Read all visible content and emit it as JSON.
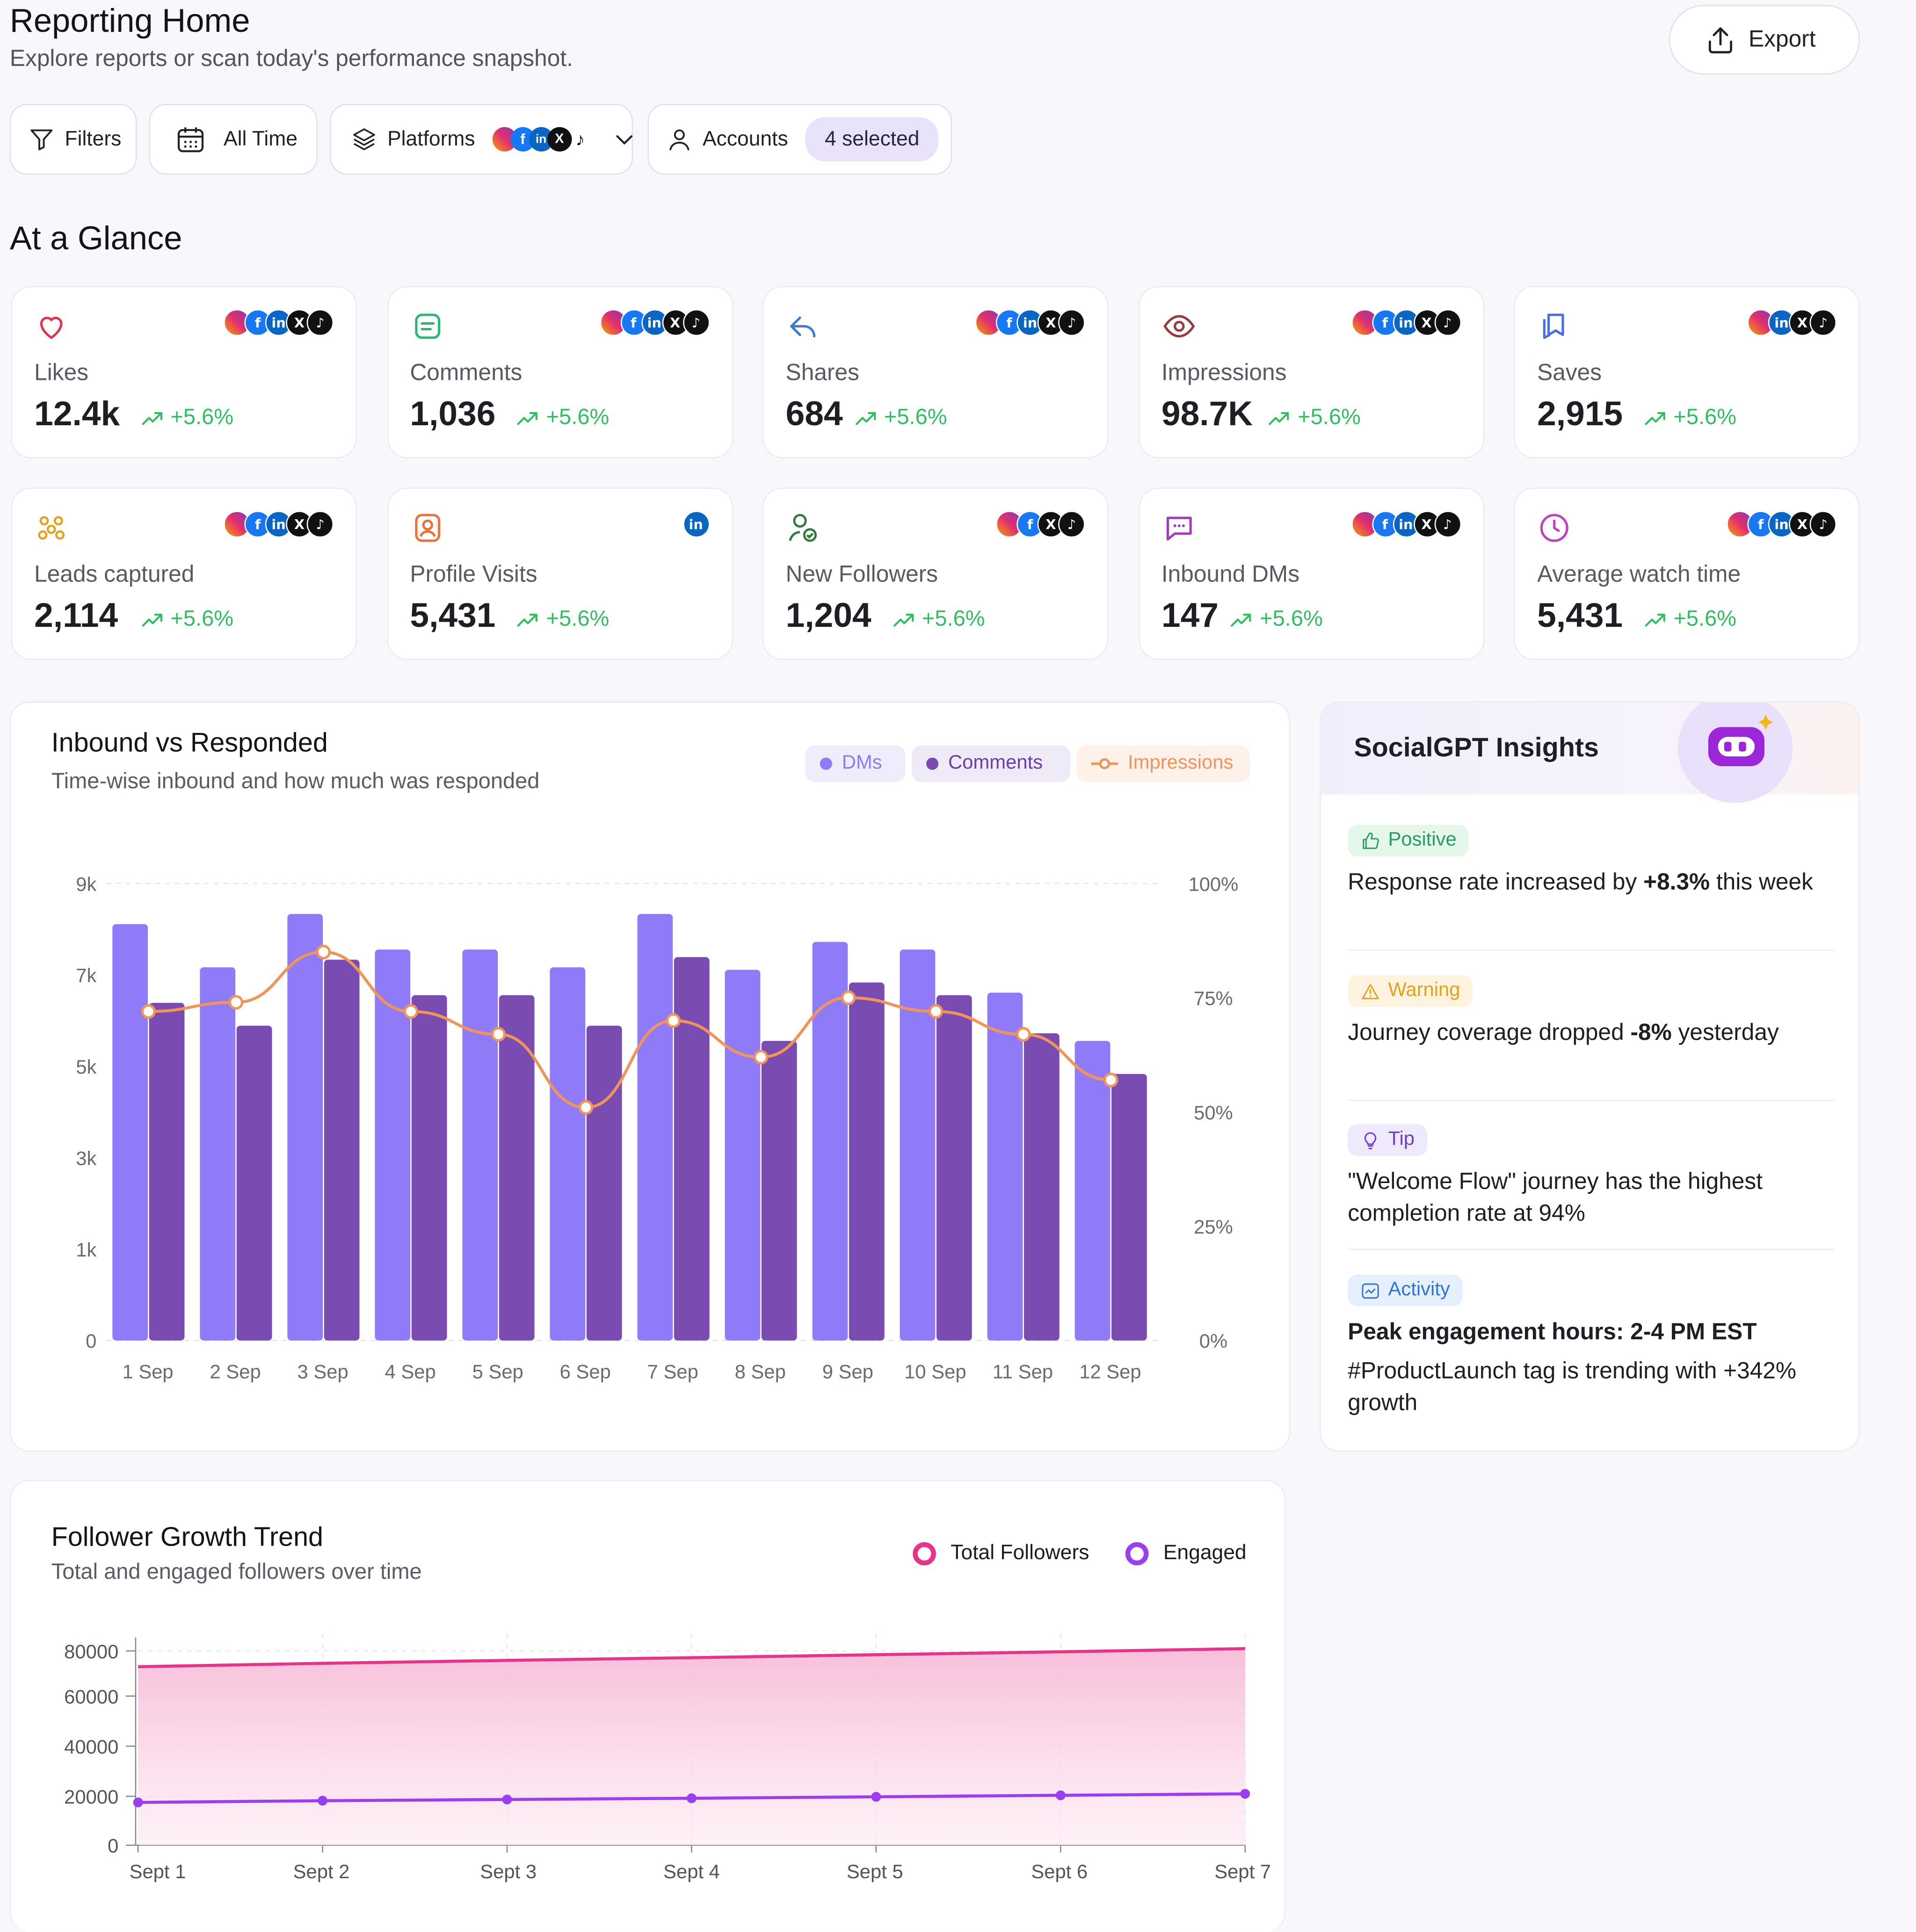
{
  "header": {
    "title": "Reporting Home",
    "subtitle": "Explore reports or scan today's performance snapshot.",
    "export_label": "Export"
  },
  "filters": {
    "filters_label": "Filters",
    "date_label": "All Time",
    "platforms_label": "Platforms",
    "accounts_label": "Accounts",
    "accounts_selected": "4 selected"
  },
  "glance": {
    "title": "At a Glance",
    "metrics": [
      {
        "label": "Likes",
        "value": "12.4k",
        "delta": "+5.6%",
        "icon": "heart-icon",
        "platforms": [
          "instagram",
          "facebook",
          "linkedin",
          "x",
          "tiktok"
        ]
      },
      {
        "label": "Comments",
        "value": "1,036",
        "delta": "+5.6%",
        "icon": "comment-icon",
        "platforms": [
          "instagram",
          "facebook",
          "linkedin",
          "x",
          "tiktok"
        ]
      },
      {
        "label": "Shares",
        "value": "684",
        "delta": "+5.6%",
        "icon": "share-icon",
        "platforms": [
          "instagram",
          "facebook",
          "linkedin",
          "x",
          "tiktok"
        ]
      },
      {
        "label": "Impressions",
        "value": "98.7K",
        "delta": "+5.6%",
        "icon": "eye-icon",
        "platforms": [
          "instagram",
          "facebook",
          "linkedin",
          "x",
          "tiktok"
        ]
      },
      {
        "label": "Saves",
        "value": "2,915",
        "delta": "+5.6%",
        "icon": "bookmark-icon",
        "platforms": [
          "instagram",
          "linkedin",
          "x",
          "tiktok"
        ]
      },
      {
        "label": "Leads captured",
        "value": "2,114",
        "delta": "+5.6%",
        "icon": "users-group-icon",
        "platforms": [
          "instagram",
          "facebook",
          "linkedin",
          "x",
          "tiktok"
        ]
      },
      {
        "label": "Profile Visits",
        "value": "5,431",
        "delta": "+5.6%",
        "icon": "profile-icon",
        "platforms": [
          "linkedin"
        ]
      },
      {
        "label": "New Followers",
        "value": "1,204",
        "delta": "+5.6%",
        "icon": "user-check-icon",
        "platforms": [
          "instagram",
          "facebook",
          "x",
          "tiktok"
        ]
      },
      {
        "label": "Inbound DMs",
        "value": "147",
        "delta": "+5.6%",
        "icon": "message-icon",
        "platforms": [
          "instagram",
          "facebook",
          "linkedin",
          "x",
          "tiktok"
        ]
      },
      {
        "label": "Average watch time",
        "value": "5,431",
        "delta": "+5.6%",
        "icon": "clock-icon",
        "platforms": [
          "instagram",
          "facebook",
          "linkedin",
          "x",
          "tiktok"
        ]
      }
    ]
  },
  "inbound_chart": {
    "title": "Inbound vs Responded",
    "subtitle": "Time-wise inbound and how much was responded",
    "legend": [
      {
        "name": "DMs",
        "color": "#8f7bf7"
      },
      {
        "name": "Comments",
        "color": "#7a4bb0"
      },
      {
        "name": "Impressions",
        "color": "#f0955a"
      }
    ]
  },
  "follower_chart": {
    "title": "Follower Growth Trend",
    "subtitle": "Total and engaged followers over time",
    "legend": [
      {
        "name": "Total Followers",
        "color": "#e8338a"
      },
      {
        "name": "Engaged",
        "color": "#9b3ef0"
      }
    ]
  },
  "insights": {
    "title": "SocialGPT Insights",
    "items": [
      {
        "badge": "Positive",
        "kind": "positive",
        "text": "Response rate increased by ",
        "strong": "+8.3%",
        "text2": " this week"
      },
      {
        "badge": "Warning",
        "kind": "warning",
        "text": "Journey coverage dropped ",
        "strong": "-8%",
        "text2": " yesterday"
      },
      {
        "badge": "Tip",
        "kind": "tip",
        "text": "\"Welcome Flow\" journey has the highest completion rate at 94%",
        "strong": "",
        "text2": ""
      },
      {
        "badge": "Activity",
        "kind": "activity",
        "text": "",
        "strong": "Peak engagement hours: 2-4 PM EST",
        "text2": "#ProductLaunch tag is trending with +342% growth"
      }
    ]
  },
  "chart_data": [
    {
      "type": "bar",
      "title": "Inbound vs Responded",
      "categories": [
        "1 Sep",
        "2 Sep",
        "3 Sep",
        "4 Sep",
        "5 Sep",
        "6 Sep",
        "7 Sep",
        "8 Sep",
        "9 Sep",
        "10 Sep",
        "11 Sep",
        "12 Sep"
      ],
      "y_ticks": [
        "0",
        "1k",
        "3k",
        "5k",
        "7k",
        "9k"
      ],
      "y2_ticks": [
        "0%",
        "25%",
        "50%",
        "75%",
        "100%"
      ],
      "ylim": [
        0,
        9000
      ],
      "y2lim": [
        0,
        100
      ],
      "series": [
        {
          "name": "DMs",
          "type": "bar",
          "axis": "left",
          "values": [
            8200,
            7350,
            8400,
            7700,
            7700,
            7350,
            8400,
            7300,
            7850,
            7700,
            6850,
            5900
          ]
        },
        {
          "name": "Comments",
          "type": "bar",
          "axis": "left",
          "values": [
            6650,
            6200,
            7500,
            6800,
            6800,
            6200,
            7550,
            5900,
            7050,
            6800,
            6050,
            5250
          ]
        },
        {
          "name": "Impressions",
          "type": "line",
          "axis": "right",
          "values": [
            72,
            74,
            85,
            72,
            67,
            51,
            70,
            62,
            75,
            72,
            67,
            57
          ]
        }
      ],
      "grid": true
    },
    {
      "type": "area",
      "title": "Follower Growth Trend",
      "categories": [
        "Sept 1",
        "Sept 2",
        "Sept 3",
        "Sept 4",
        "Sept 5",
        "Sept 6",
        "Sept 7"
      ],
      "y_ticks": [
        "0",
        "20000",
        "40000",
        "60000",
        "80000"
      ],
      "ylim": [
        0,
        85000
      ],
      "series": [
        {
          "name": "Total Followers",
          "values": [
            73000,
            74500,
            75800,
            77000,
            78300,
            79600,
            81000
          ]
        },
        {
          "name": "Engaged",
          "values": [
            17500,
            18200,
            18700,
            19200,
            19800,
            20400,
            21000
          ]
        }
      ],
      "grid": true
    }
  ]
}
